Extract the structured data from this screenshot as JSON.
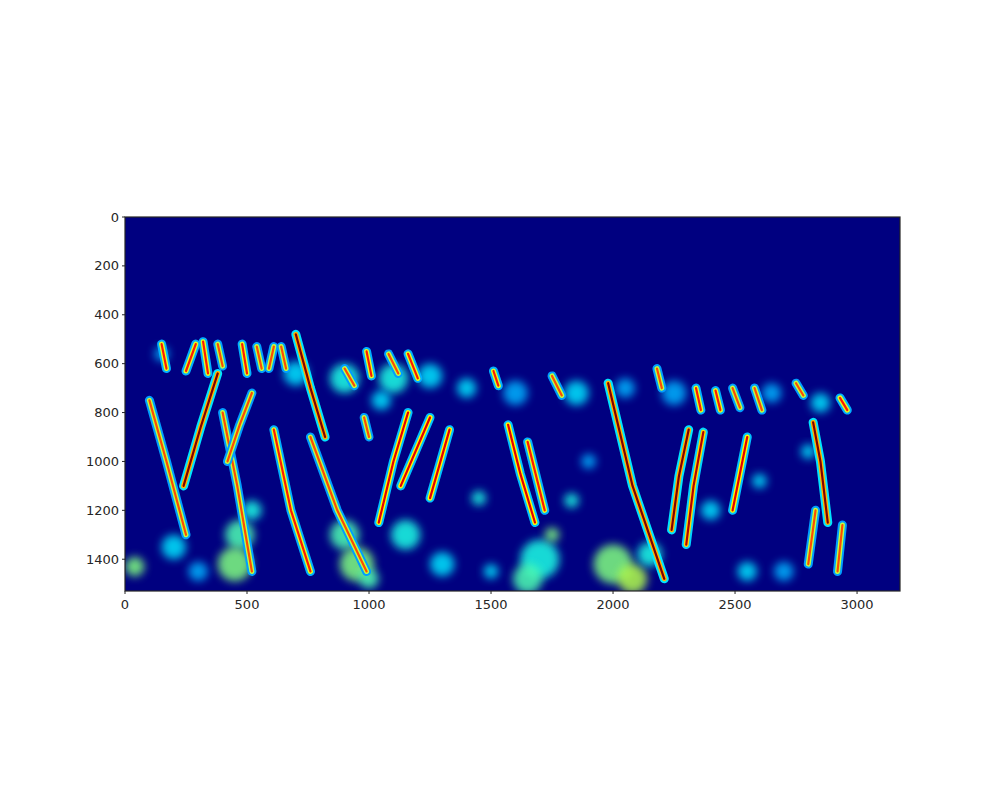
{
  "chart_data": {
    "type": "heatmap",
    "xlim": [
      0,
      3176
    ],
    "ylim": [
      1530,
      0
    ],
    "xticks": [
      0,
      500,
      1000,
      1500,
      2000,
      2500,
      3000
    ],
    "yticks": [
      0,
      200,
      400,
      600,
      800,
      1000,
      1200,
      1400
    ],
    "color_range": [
      0,
      1
    ],
    "patches": [
      {
        "x": 470,
        "y": 1300,
        "r": 60,
        "value": 0.45
      },
      {
        "x": 450,
        "y": 1420,
        "r": 70,
        "value": 0.5
      },
      {
        "x": 520,
        "y": 1200,
        "r": 40,
        "value": 0.4
      },
      {
        "x": 900,
        "y": 1300,
        "r": 60,
        "value": 0.45
      },
      {
        "x": 950,
        "y": 1420,
        "r": 70,
        "value": 0.5
      },
      {
        "x": 1000,
        "y": 1480,
        "r": 40,
        "value": 0.45
      },
      {
        "x": 1700,
        "y": 1400,
        "r": 80,
        "value": 0.4
      },
      {
        "x": 1650,
        "y": 1480,
        "r": 60,
        "value": 0.45
      },
      {
        "x": 2000,
        "y": 1420,
        "r": 80,
        "value": 0.5
      },
      {
        "x": 2080,
        "y": 1480,
        "r": 60,
        "value": 0.55
      },
      {
        "x": 2150,
        "y": 1380,
        "r": 50,
        "value": 0.4
      },
      {
        "x": 200,
        "y": 1350,
        "r": 50,
        "value": 0.35
      },
      {
        "x": 40,
        "y": 1430,
        "r": 40,
        "value": 0.5
      },
      {
        "x": 300,
        "y": 1450,
        "r": 40,
        "value": 0.3
      },
      {
        "x": 1150,
        "y": 1300,
        "r": 60,
        "value": 0.4
      },
      {
        "x": 1300,
        "y": 1420,
        "r": 50,
        "value": 0.35
      },
      {
        "x": 1450,
        "y": 1150,
        "r": 30,
        "value": 0.4
      },
      {
        "x": 1500,
        "y": 1450,
        "r": 30,
        "value": 0.35
      },
      {
        "x": 2550,
        "y": 1450,
        "r": 40,
        "value": 0.35
      },
      {
        "x": 2700,
        "y": 1450,
        "r": 40,
        "value": 0.3
      },
      {
        "x": 2400,
        "y": 1200,
        "r": 40,
        "value": 0.35
      },
      {
        "x": 2600,
        "y": 1080,
        "r": 30,
        "value": 0.35
      },
      {
        "x": 1750,
        "y": 1300,
        "r": 30,
        "value": 0.5
      },
      {
        "x": 1830,
        "y": 1160,
        "r": 30,
        "value": 0.4
      },
      {
        "x": 700,
        "y": 640,
        "r": 50,
        "value": 0.35
      },
      {
        "x": 900,
        "y": 660,
        "r": 60,
        "value": 0.4
      },
      {
        "x": 1100,
        "y": 660,
        "r": 60,
        "value": 0.4
      },
      {
        "x": 1250,
        "y": 650,
        "r": 50,
        "value": 0.35
      },
      {
        "x": 1400,
        "y": 700,
        "r": 40,
        "value": 0.35
      },
      {
        "x": 1600,
        "y": 720,
        "r": 50,
        "value": 0.3
      },
      {
        "x": 1850,
        "y": 720,
        "r": 50,
        "value": 0.35
      },
      {
        "x": 2050,
        "y": 700,
        "r": 40,
        "value": 0.3
      },
      {
        "x": 2250,
        "y": 720,
        "r": 50,
        "value": 0.3
      },
      {
        "x": 2650,
        "y": 720,
        "r": 40,
        "value": 0.3
      },
      {
        "x": 2850,
        "y": 760,
        "r": 40,
        "value": 0.35
      },
      {
        "x": 150,
        "y": 560,
        "r": 30,
        "value": 0.3
      },
      {
        "x": 1050,
        "y": 750,
        "r": 40,
        "value": 0.35
      },
      {
        "x": 2800,
        "y": 960,
        "r": 30,
        "value": 0.35
      },
      {
        "x": 1900,
        "y": 1000,
        "r": 30,
        "value": 0.3
      }
    ],
    "streaks": [
      {
        "x": [
          240,
          310,
          380
        ],
        "y": [
          1100,
          860,
          640
        ],
        "value": 1
      },
      {
        "x": [
          700,
          760,
          820
        ],
        "y": [
          480,
          700,
          900
        ],
        "value": 1
      },
      {
        "x": [
          1980,
          2080,
          2210
        ],
        "y": [
          680,
          1100,
          1480
        ],
        "value": 1
      },
      {
        "x": [
          2820,
          2850,
          2880
        ],
        "y": [
          840,
          1000,
          1250
        ],
        "value": 1
      },
      {
        "x": [
          2240,
          2270,
          2310
        ],
        "y": [
          1280,
          1060,
          870
        ],
        "value": 1
      },
      {
        "x": [
          2300,
          2330,
          2370
        ],
        "y": [
          1340,
          1100,
          880
        ],
        "value": 0.95
      },
      {
        "x": [
          2490,
          2550
        ],
        "y": [
          1200,
          900
        ],
        "value": 0.9
      },
      {
        "x": [
          1570,
          1620,
          1680
        ],
        "y": [
          850,
          1050,
          1250
        ],
        "value": 0.9
      },
      {
        "x": [
          1650,
          1720
        ],
        "y": [
          920,
          1200
        ],
        "value": 0.85
      },
      {
        "x": [
          1040,
          1100,
          1160
        ],
        "y": [
          1250,
          1000,
          800
        ],
        "value": 0.9
      },
      {
        "x": [
          1130,
          1250
        ],
        "y": [
          1100,
          820
        ],
        "value": 0.9
      },
      {
        "x": [
          1250,
          1330
        ],
        "y": [
          1150,
          870
        ],
        "value": 0.9
      },
      {
        "x": [
          610,
          680,
          760
        ],
        "y": [
          870,
          1200,
          1450
        ],
        "value": 0.85
      },
      {
        "x": [
          760,
          870,
          990
        ],
        "y": [
          900,
          1200,
          1450
        ],
        "value": 0.8
      },
      {
        "x": [
          400,
          460,
          520
        ],
        "y": [
          800,
          1100,
          1450
        ],
        "value": 0.8
      },
      {
        "x": [
          100,
          170,
          250
        ],
        "y": [
          750,
          1000,
          1300
        ],
        "value": 0.8
      },
      {
        "x": [
          420,
          470,
          520
        ],
        "y": [
          1000,
          850,
          720
        ],
        "value": 0.8
      },
      {
        "x": [
          2800,
          2830
        ],
        "y": [
          1420,
          1200
        ],
        "value": 0.8
      },
      {
        "x": [
          2920,
          2940
        ],
        "y": [
          1450,
          1260
        ],
        "value": 0.8
      },
      {
        "x": [
          150,
          170
        ],
        "y": [
          520,
          620
        ],
        "value": 0.85
      },
      {
        "x": [
          250,
          290
        ],
        "y": [
          630,
          520
        ],
        "value": 0.85
      },
      {
        "x": [
          320,
          340
        ],
        "y": [
          510,
          640
        ],
        "value": 0.85
      },
      {
        "x": [
          380,
          400
        ],
        "y": [
          520,
          610
        ],
        "value": 0.8
      },
      {
        "x": [
          480,
          500
        ],
        "y": [
          520,
          640
        ],
        "value": 0.85
      },
      {
        "x": [
          540,
          560
        ],
        "y": [
          530,
          620
        ],
        "value": 0.8
      },
      {
        "x": [
          590,
          610
        ],
        "y": [
          620,
          530
        ],
        "value": 0.8
      },
      {
        "x": [
          640,
          660
        ],
        "y": [
          530,
          620
        ],
        "value": 0.8
      },
      {
        "x": [
          900,
          940
        ],
        "y": [
          620,
          690
        ],
        "value": 0.8
      },
      {
        "x": [
          990,
          1010
        ],
        "y": [
          550,
          650
        ],
        "value": 0.85
      },
      {
        "x": [
          1080,
          1120
        ],
        "y": [
          560,
          640
        ],
        "value": 0.8
      },
      {
        "x": [
          1160,
          1200
        ],
        "y": [
          560,
          660
        ],
        "value": 0.85
      },
      {
        "x": [
          1510,
          1530
        ],
        "y": [
          630,
          690
        ],
        "value": 0.85
      },
      {
        "x": [
          1750,
          1790
        ],
        "y": [
          650,
          730
        ],
        "value": 0.8
      },
      {
        "x": [
          2180,
          2200
        ],
        "y": [
          620,
          700
        ],
        "value": 0.8
      },
      {
        "x": [
          2340,
          2360
        ],
        "y": [
          700,
          790
        ],
        "value": 0.85
      },
      {
        "x": [
          2420,
          2440
        ],
        "y": [
          710,
          790
        ],
        "value": 0.85
      },
      {
        "x": [
          2490,
          2520
        ],
        "y": [
          700,
          780
        ],
        "value": 0.8
      },
      {
        "x": [
          2580,
          2610
        ],
        "y": [
          700,
          790
        ],
        "value": 0.8
      },
      {
        "x": [
          2750,
          2780
        ],
        "y": [
          680,
          730
        ],
        "value": 0.8
      },
      {
        "x": [
          2930,
          2960
        ],
        "y": [
          740,
          790
        ],
        "value": 0.85
      },
      {
        "x": [
          980,
          1000
        ],
        "y": [
          820,
          900
        ],
        "value": 0.8
      }
    ]
  }
}
